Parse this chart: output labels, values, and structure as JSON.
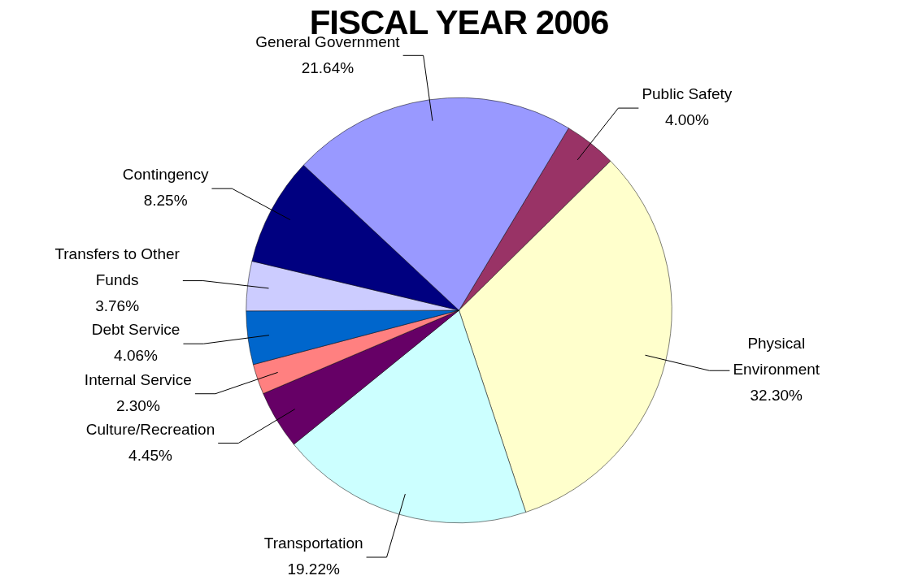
{
  "chart_data": {
    "type": "pie",
    "title": "FISCAL YEAR 2006",
    "categories": [
      "Public Safety",
      "Physical Environment",
      "Transportation",
      "Culture/Recreation",
      "Internal Service",
      "Debt Service",
      "Transfers to Other Funds",
      "Contingency",
      "General Government"
    ],
    "values": [
      4.0,
      32.3,
      19.22,
      4.45,
      2.3,
      4.06,
      3.76,
      8.25,
      21.64
    ],
    "value_labels": [
      "4.00%",
      "32.30%",
      "19.22%",
      "4.45%",
      "2.30%",
      "4.06%",
      "3.76%",
      "8.25%",
      "21.64%"
    ],
    "colors": [
      "#993366",
      "#ffffcc",
      "#ccffff",
      "#660066",
      "#ff8080",
      "#0066cc",
      "#ccccff",
      "#000080",
      "#9999ff"
    ],
    "legend": false
  }
}
